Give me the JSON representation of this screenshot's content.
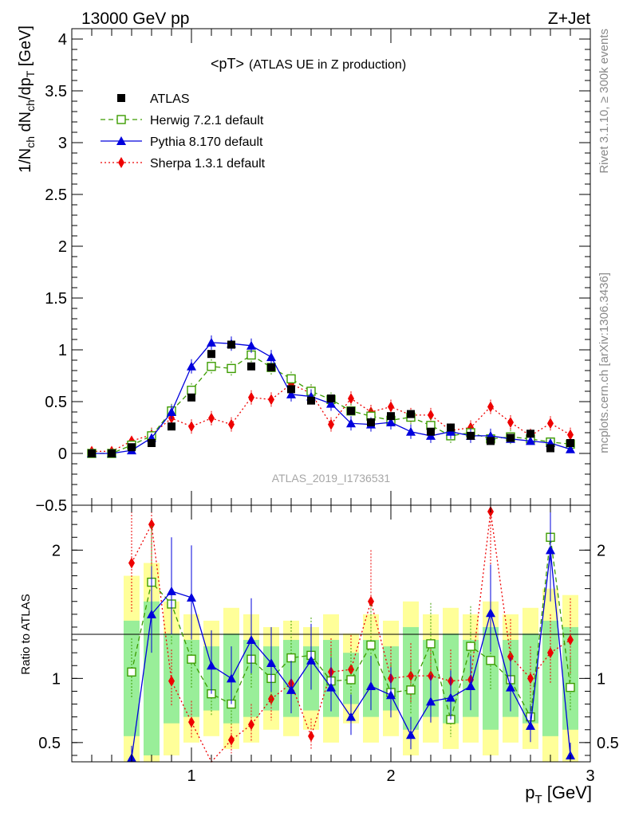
{
  "header": {
    "left": "13000 GeV pp",
    "right": "Z+Jet"
  },
  "side": {
    "rivet": "Rivet 3.1.10, ≥ 300k events",
    "mcplots": "mcplots.cern.ch [arXiv:1306.3436]"
  },
  "chart_data": [
    {
      "type": "scatter",
      "title": "<pT>",
      "subtitle": "(ATLAS UE in Z production)",
      "watermark": "ATLAS_2019_I1736531",
      "ylabel_main": "1/N",
      "ylabel_sub1": "ch",
      "ylabel_mid": " dN",
      "ylabel_sub2": "ch",
      "ylabel_end": "/dp",
      "ylabel_sub3": "T",
      "ylabel_unit": " [GeV]",
      "xlabel": "p",
      "xlabel_sub": "T",
      "xlabel_unit": " [GeV]",
      "xlim": [
        0.4,
        3.0
      ],
      "ylim": [
        -0.5,
        4.1
      ],
      "yticks": [
        "−0.5",
        "0",
        "0.5",
        "1",
        "1.5",
        "2",
        "2.5",
        "3",
        "3.5",
        "4"
      ],
      "ytick_values": [
        -0.5,
        0,
        0.5,
        1,
        1.5,
        2,
        2.5,
        3,
        3.5,
        4
      ],
      "x": [
        0.5,
        0.6,
        0.7,
        0.8,
        0.9,
        1.0,
        1.1,
        1.2,
        1.3,
        1.4,
        1.5,
        1.6,
        1.7,
        1.8,
        1.9,
        2.0,
        2.1,
        2.2,
        2.3,
        2.4,
        2.5,
        2.6,
        2.7,
        2.8,
        2.9
      ],
      "series": [
        {
          "name": "ATLAS",
          "color": "#000000",
          "marker": "square-filled",
          "values": [
            0.0,
            0.0,
            0.06,
            0.1,
            0.26,
            0.54,
            0.96,
            1.05,
            0.84,
            0.83,
            0.62,
            0.51,
            0.53,
            0.41,
            0.3,
            0.36,
            0.38,
            0.21,
            0.25,
            0.17,
            0.12,
            0.15,
            0.19,
            0.05,
            0.1
          ]
        },
        {
          "name": "Herwig 7.2.1 default",
          "color": "#3c9c00",
          "marker": "square-open",
          "dash": "6,4",
          "values": [
            0.0,
            0.0,
            0.08,
            0.17,
            0.41,
            0.61,
            0.84,
            0.82,
            0.95,
            0.83,
            0.72,
            0.6,
            0.52,
            0.41,
            0.36,
            0.32,
            0.35,
            0.27,
            0.17,
            0.2,
            0.14,
            0.16,
            0.14,
            0.11,
            0.09
          ]
        },
        {
          "name": "Pythia 8.170 default",
          "color": "#0000dd",
          "marker": "triangle-filled",
          "values": [
            0.0,
            0.0,
            0.03,
            0.15,
            0.4,
            0.84,
            1.07,
            1.06,
            1.04,
            0.93,
            0.57,
            0.55,
            0.48,
            0.29,
            0.28,
            0.3,
            0.21,
            0.17,
            0.21,
            0.17,
            0.17,
            0.14,
            0.12,
            0.1,
            0.04
          ]
        },
        {
          "name": "Sherpa 1.3.1 default",
          "color": "#ee0000",
          "marker": "diamond-filled",
          "dash": "2,3",
          "values": [
            0.02,
            0.02,
            0.12,
            0.18,
            0.34,
            0.26,
            0.34,
            0.28,
            0.54,
            0.52,
            0.67,
            0.58,
            0.28,
            0.53,
            0.4,
            0.45,
            0.37,
            0.37,
            0.22,
            0.25,
            0.45,
            0.3,
            0.17,
            0.29,
            0.18
          ]
        }
      ]
    },
    {
      "type": "scatter",
      "ylabel": "Ratio to ATLAS",
      "xlim": [
        0.4,
        3.0
      ],
      "ylim": [
        0.35,
        2.35
      ],
      "yticks": [
        "0.5",
        "1",
        "2"
      ],
      "ytick_values": [
        0.5,
        1,
        2
      ],
      "xticks": [
        "1",
        "2",
        "3"
      ],
      "xtick_values": [
        1,
        2,
        3
      ],
      "x": [
        0.7,
        0.8,
        0.9,
        1.0,
        1.1,
        1.2,
        1.3,
        1.4,
        1.5,
        1.6,
        1.7,
        1.8,
        1.9,
        2.0,
        2.1,
        2.2,
        2.3,
        2.4,
        2.5,
        2.6,
        2.7,
        2.8,
        2.9
      ],
      "bands": {
        "green_half_width": [
          0.45,
          0.6,
          0.35,
          0.3,
          0.25,
          0.35,
          0.3,
          0.25,
          0.3,
          0.25,
          0.3,
          0.2,
          0.3,
          0.25,
          0.4,
          0.3,
          0.35,
          0.3,
          0.4,
          0.3,
          0.35,
          0.45,
          0.4
        ],
        "yellow_half_width": [
          0.8,
          0.9,
          0.6,
          0.5,
          0.45,
          0.55,
          0.5,
          0.4,
          0.45,
          0.4,
          0.5,
          0.35,
          0.5,
          0.45,
          0.6,
          0.5,
          0.55,
          0.5,
          0.6,
          0.5,
          0.55,
          0.7,
          0.65
        ]
      },
      "series": [
        {
          "name": "Herwig 7.2.1 default",
          "color": "#3c9c00",
          "marker": "square-open",
          "dash": "6,4",
          "values": [
            1.05,
            1.75,
            1.58,
            1.15,
            0.88,
            0.8,
            1.15,
            1.0,
            1.16,
            1.18,
            0.98,
            0.99,
            1.26,
            0.89,
            0.91,
            1.27,
            0.68,
            1.25,
            1.14,
            0.99,
            0.7,
            2.1,
            0.93
          ]
        },
        {
          "name": "Pythia 8.170 default",
          "color": "#0000dd",
          "marker": "triangle-filled",
          "values": [
            0.38,
            1.5,
            1.68,
            1.63,
            1.1,
            1.0,
            1.3,
            1.12,
            0.91,
            1.14,
            0.93,
            0.7,
            0.94,
            0.87,
            0.56,
            0.82,
            0.85,
            0.94,
            1.51,
            0.93,
            0.63,
            2.0,
            0.4
          ]
        },
        {
          "name": "Sherpa 1.3.1 default",
          "color": "#ee0000",
          "marker": "diamond-filled",
          "dash": "2,3",
          "values": [
            1.9,
            2.2,
            0.98,
            0.66,
            0.33,
            0.52,
            0.64,
            0.84,
            0.96,
            0.55,
            1.05,
            1.07,
            1.6,
            1.0,
            1.02,
            1.02,
            0.98,
            0.99,
            2.3,
            1.17,
            1.0,
            1.2,
            1.3
          ]
        }
      ]
    }
  ]
}
